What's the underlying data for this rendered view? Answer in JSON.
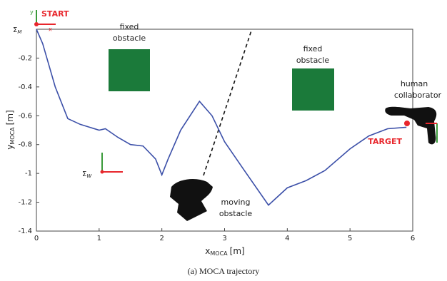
{
  "chart_data": {
    "type": "line",
    "x_label": {
      "main": "x",
      "sub": "MOCA",
      "unit": "[m]"
    },
    "y_label": {
      "main": "y",
      "sub": "MOCA",
      "unit": "[m]"
    },
    "caption": "(a) MOCA trajectory",
    "xlim": [
      0,
      6
    ],
    "xticks": [
      0,
      1,
      2,
      3,
      4,
      5,
      6
    ],
    "ylim": [
      -1.4,
      0
    ],
    "yticks": [
      -1.4,
      -1.2,
      -1,
      -0.8,
      -0.6,
      -0.4,
      -0.2
    ],
    "series": [
      {
        "color": "#3b4fa8",
        "x": [
          0,
          0.1,
          0.3,
          0.5,
          0.7,
          1.0,
          1.1,
          1.3,
          1.5,
          1.7,
          1.9,
          2.0,
          2.1,
          2.3,
          2.6,
          2.8,
          3.0,
          3.3,
          3.7,
          4.0,
          4.3,
          4.6,
          5.0,
          5.3,
          5.6,
          5.9
        ],
        "values": [
          0,
          -0.1,
          -0.4,
          -0.62,
          -0.66,
          -0.7,
          -0.69,
          -0.75,
          -0.8,
          -0.81,
          -0.9,
          -1.01,
          -0.9,
          -0.7,
          -0.5,
          -0.6,
          -0.78,
          -0.97,
          -1.22,
          -1.1,
          -1.05,
          -0.98,
          -0.83,
          -0.74,
          -0.69,
          -0.68
        ]
      }
    ],
    "annotations": {
      "start": "START",
      "target": "TARGET",
      "axis_x": "x",
      "axis_y": "y",
      "sigma_m": {
        "symbol": "Σ",
        "sub": "M"
      },
      "sigma_w": {
        "symbol": "Σ",
        "sub": "W"
      },
      "fixed_1": [
        "fixed",
        "obstacle"
      ],
      "fixed_2": [
        "fixed",
        "obstacle"
      ],
      "human": [
        "human",
        "collaborator"
      ],
      "moving": [
        "moving",
        "obstacle"
      ]
    }
  }
}
